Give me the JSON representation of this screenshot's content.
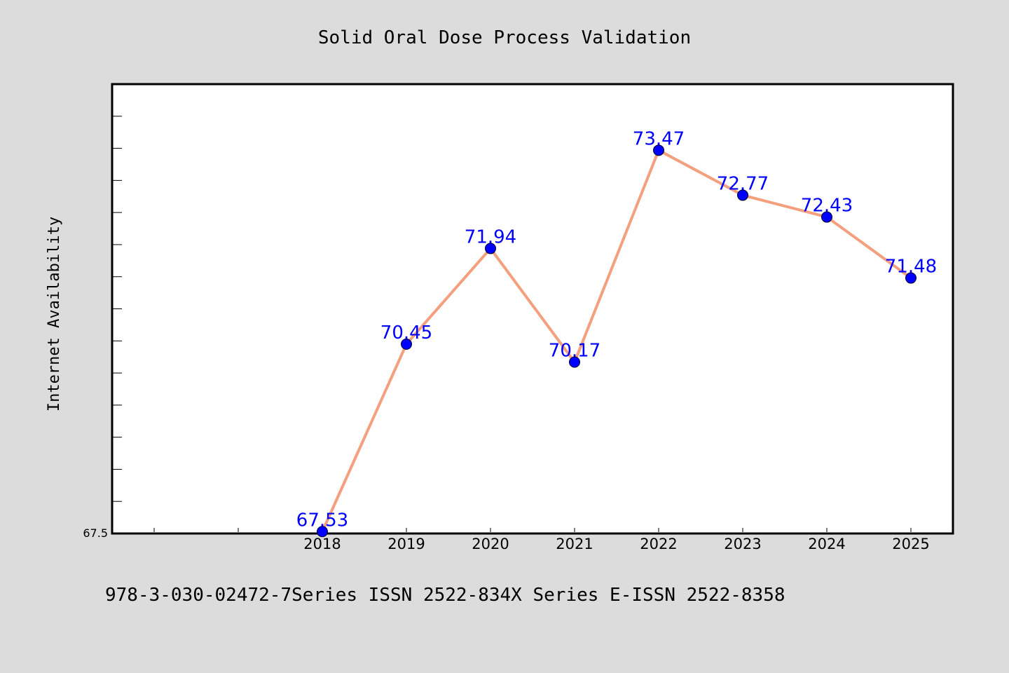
{
  "chart_data": {
    "type": "line",
    "title": "Solid Oral Dose Process Validation",
    "xlabel": "",
    "ylabel": "Internet Availability",
    "categories": [
      "2018",
      "2019",
      "2020",
      "2021",
      "2022",
      "2023",
      "2024",
      "2025"
    ],
    "series": [
      {
        "values": [
          67.53,
          70.45,
          71.94,
          70.17,
          73.47,
          72.77,
          72.43,
          71.48
        ],
        "line_color": "#f4a07f",
        "marker_color": "#0000ff"
      }
    ],
    "data_labels": [
      "67.53",
      "70.45",
      "71.94",
      "70.17",
      "73.47",
      "72.77",
      "72.43",
      "71.48"
    ],
    "y_tick_labels": [
      "67.5"
    ],
    "ylim": [
      67.5,
      74.5
    ],
    "grid": false,
    "legend": "none"
  },
  "footnote": "978-3-030-02472-7Series ISSN 2522-834X Series E-ISSN 2522-8358",
  "colors": {
    "background": "#dcdcdc",
    "plot_background": "#ffffff",
    "line": "#f4a07f",
    "marker": "#0000ff",
    "data_label": "#0000ff"
  }
}
